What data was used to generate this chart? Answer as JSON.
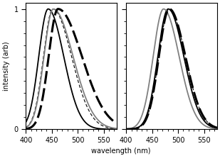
{
  "left_panel": {
    "xlim": [
      400,
      575
    ],
    "ylim": [
      0,
      1.05
    ],
    "xticks": [
      400,
      450,
      500,
      550
    ],
    "yticks": [
      0,
      1.0
    ],
    "yticklabels": [
      "0",
      "1"
    ],
    "curves": [
      {
        "peak": 443,
        "sigma_l": 18,
        "sigma_r": 30,
        "color": "black",
        "lw": 1.3,
        "ls": "solid"
      },
      {
        "peak": 452,
        "sigma_l": 18,
        "sigma_r": 36,
        "color": "black",
        "lw": 0.8,
        "ls": "thin_dash"
      },
      {
        "peak": 453,
        "sigma_l": 18,
        "sigma_r": 38,
        "color": "gray",
        "lw": 1.3,
        "ls": "solid"
      },
      {
        "peak": 462,
        "sigma_l": 18,
        "sigma_r": 46,
        "color": "black",
        "lw": 2.2,
        "ls": "thick_dash"
      }
    ]
  },
  "right_panel": {
    "xlim": [
      400,
      575
    ],
    "ylim": [
      0,
      1.05
    ],
    "xticks": [
      400,
      450,
      500,
      550
    ],
    "yticks": [
      0,
      1.0
    ],
    "yticklabels": [],
    "curves": [
      {
        "peak": 481,
        "sigma_l": 20,
        "sigma_r": 30,
        "color": "black",
        "lw": 1.3,
        "ls": "solid"
      },
      {
        "peak": 483,
        "sigma_l": 20,
        "sigma_r": 31,
        "color": "black",
        "lw": 0.8,
        "ls": "thin_dash"
      },
      {
        "peak": 472,
        "sigma_l": 20,
        "sigma_r": 30,
        "color": "gray",
        "lw": 1.3,
        "ls": "solid"
      },
      {
        "peak": 483,
        "sigma_l": 20,
        "sigma_r": 31,
        "color": "black",
        "lw": 2.2,
        "ls": "thick_dash"
      }
    ]
  },
  "xlabel": "wavelength (nm)",
  "ylabel": "intensity (arb)",
  "bg_color": "white",
  "figsize": [
    3.09,
    2.2
  ],
  "dpi": 100
}
